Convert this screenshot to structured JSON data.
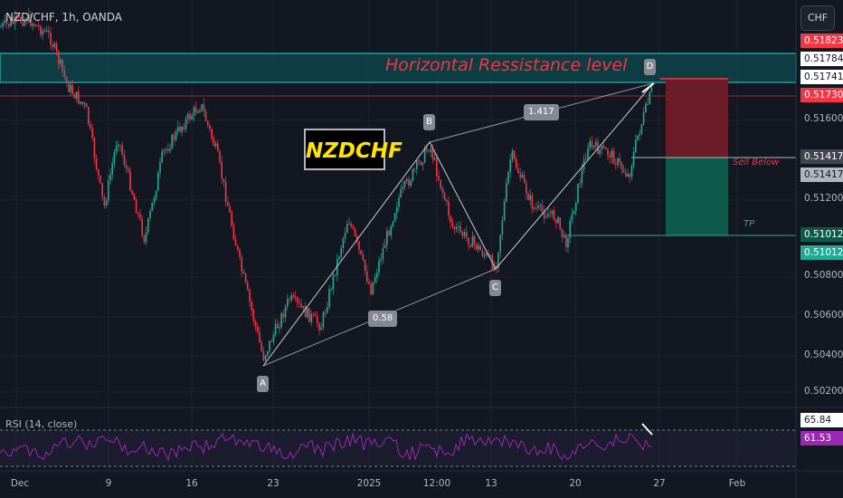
{
  "header": {
    "title": "NZD/CHF, 1h, OANDA",
    "currency_button": "CHF"
  },
  "annotations": {
    "resistance_text": "Horizontal Ressistance level",
    "symbol_box": "NZDCHF",
    "sell_text": "Sell Below",
    "tp_text": "TP",
    "points": {
      "A": "A",
      "B": "B",
      "C": "C",
      "D": "D"
    },
    "ratio_bc": "0.58",
    "ratio_bd": "1.417"
  },
  "price_axis": {
    "ticks": [
      "0.51600",
      "0.51200",
      "0.50800",
      "0.50600",
      "0.50400",
      "0.50200"
    ],
    "labels": {
      "top_red": "0.51823",
      "zone_top": "0.51784",
      "zone_bottom": "0.51741",
      "last": "0.51730",
      "sell_1": "0.51417",
      "sell_2": "0.51417",
      "tp_1": "0.51012",
      "tp_2": "0.51012"
    }
  },
  "time_axis": [
    "Dec",
    "9",
    "16",
    "23",
    "2025",
    "12:00",
    "13",
    "20",
    "27",
    "Feb"
  ],
  "rsi": {
    "label": "RSI (14, close)",
    "value_upper": "65.84",
    "value_lower": "61.53"
  },
  "colors": {
    "bull": "#22ab94",
    "bear": "#f23645",
    "zone": "#1a9fa5",
    "rsi": "#9c27b0",
    "background": "#131722"
  },
  "chart_data": {
    "type": "candlestick",
    "symbol": "NZD/CHF",
    "interval": "1h",
    "ylim": [
      0.5015,
      0.519
    ],
    "harmonic_pattern": {
      "A": 0.50345,
      "B": 0.51485,
      "C": 0.50843,
      "D": 0.51745,
      "ratio_BC": 0.58,
      "ratio_XD": 1.417
    },
    "resistance_zone": [
      0.51741,
      0.51784
    ],
    "entry_sell_below": 0.51417,
    "take_profit": 0.51012,
    "last_price": 0.5173,
    "rsi": {
      "period": 14,
      "values_shown": [
        65.84,
        61.53
      ]
    }
  }
}
